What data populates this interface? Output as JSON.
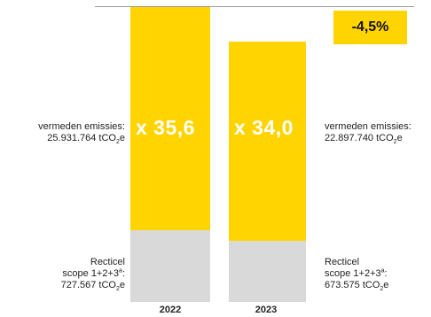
{
  "chart_data": {
    "type": "bar",
    "stacked": true,
    "categories": [
      "2022",
      "2023"
    ],
    "series": [
      {
        "key": "scope",
        "values": [
          727567,
          673575
        ],
        "color": "#D9D9D9"
      },
      {
        "key": "avoided",
        "values": [
          25931764,
          22897740
        ],
        "color": "#FFD400"
      }
    ],
    "multipliers": [
      "x 35,6",
      "x 34,0"
    ],
    "change_label": "-4,5%"
  },
  "labels": {
    "avoided_prefix": "vermeden emissies:",
    "avoided_2022": "25.931.764 tCO",
    "avoided_2023": "22.897.740 tCO",
    "scope_line1": "Recticel",
    "scope_line2": "scope 1+2+3",
    "scope_2022": "727.567 tCO",
    "scope_2023": "673.575 tCO",
    "sub2": "2",
    "suffix_e": "e",
    "sup_a": "a",
    "colon": ":"
  }
}
